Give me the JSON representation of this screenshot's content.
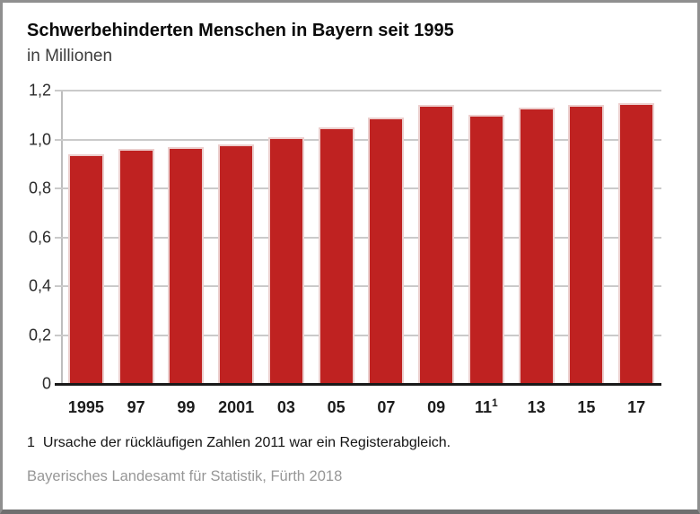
{
  "header": {
    "title": "Schwerbehinderten Menschen in Bayern seit 1995",
    "subtitle": "in Millionen"
  },
  "chart_data": {
    "type": "bar",
    "title": "Schwerbehinderten Menschen in Bayern seit 1995",
    "subtitle": "in Millionen",
    "categories": [
      "1995",
      "97",
      "99",
      "2001",
      "03",
      "05",
      "07",
      "09",
      "11",
      "13",
      "15",
      "17"
    ],
    "category_superscripts": [
      "",
      "",
      "",
      "",
      "",
      "",
      "",
      "",
      "1",
      "",
      "",
      ""
    ],
    "values": [
      0.94,
      0.96,
      0.97,
      0.98,
      1.01,
      1.05,
      1.09,
      1.14,
      1.1,
      1.13,
      1.14,
      1.15
    ],
    "ylim": [
      0,
      1.2
    ],
    "ytick_step": 0.2,
    "ytick_labels": [
      "0",
      "0,2",
      "0,4",
      "0,6",
      "0,8",
      "1,0",
      "1,2"
    ],
    "grid": true,
    "bar_color": "#bf2221"
  },
  "footnote": {
    "marker": "1",
    "text": "Ursache der rückläufigen Zahlen 2011 war ein Registerabgleich."
  },
  "source": {
    "text": "Bayerisches Landesamt für Statistik, Fürth 2018"
  }
}
